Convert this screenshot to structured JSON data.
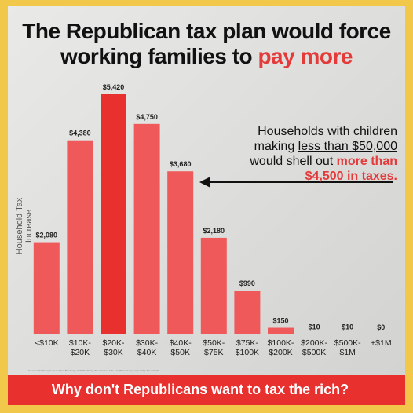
{
  "title": {
    "line1": "The Republican tax plan would force",
    "line2_prefix": "working families to ",
    "line2_highlight": "pay more"
  },
  "callout": {
    "p1": "Households with children",
    "p2_prefix": "making ",
    "p2_underlined": "less than $50,000",
    "p3": "would shell out ",
    "p3_red": "more than",
    "p4": "$4,500 in taxes."
  },
  "bottom_banner": "Why don't Republicans want to tax the rich?",
  "source_note": "Sources: Tax Policy Center; Urban-Brookings; CNN/Tax Policy; Tax Cuts and Jobs Act; Photo: Getty Images/Chip Somodevilla",
  "colors": {
    "bar": "#f0595a",
    "highlight_bar": "#e8302f",
    "accent_red": "#e53a3a",
    "background": "#f2c84b"
  },
  "chart_data": {
    "type": "bar",
    "ylabel": "Household Tax Increase",
    "categories": [
      "<$10K",
      "$10K-\n$20K",
      "$20K-\n$30K",
      "$30K-\n$40K",
      "$40K-\n$50K",
      "$50K-\n$75K",
      "$75K-\n$100K",
      "$100K-\n$200K",
      "$200K-\n$500K",
      "$500K-\n$1M",
      "+$1M"
    ],
    "values": [
      2080,
      4380,
      5420,
      4750,
      3680,
      2180,
      990,
      150,
      10,
      10,
      0
    ],
    "value_labels": [
      "$2,080",
      "$4,380",
      "$5,420",
      "$4,750",
      "$3,680",
      "$2,180",
      "$990",
      "$150",
      "$10",
      "$10",
      "$0"
    ],
    "ylim": [
      0,
      5420
    ],
    "highlight_index": 2,
    "grid": false,
    "legend": "none"
  }
}
